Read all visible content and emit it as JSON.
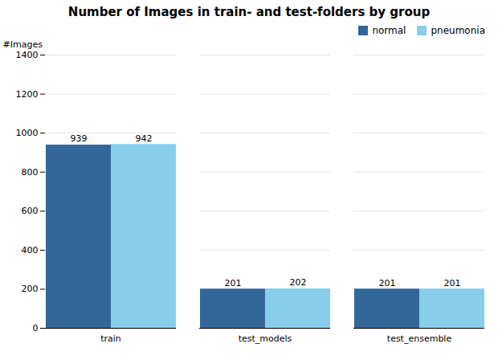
{
  "chart_data": {
    "type": "bar",
    "title": "Number of Images in train- and test-folders by group",
    "ylabel": "#Images",
    "categories": [
      "train",
      "test_models",
      "test_ensemble"
    ],
    "series": [
      {
        "name": "normal",
        "color": "#336699",
        "values": [
          939,
          201,
          201
        ]
      },
      {
        "name": "pneumonia",
        "color": "#87ceeb",
        "values": [
          942,
          202,
          201
        ]
      }
    ],
    "ylim": [
      0,
      1400
    ],
    "yticks": [
      0,
      200,
      400,
      600,
      800,
      1000,
      1200,
      1400
    ],
    "grid": true,
    "legend": "upper right",
    "data_labels": true
  }
}
